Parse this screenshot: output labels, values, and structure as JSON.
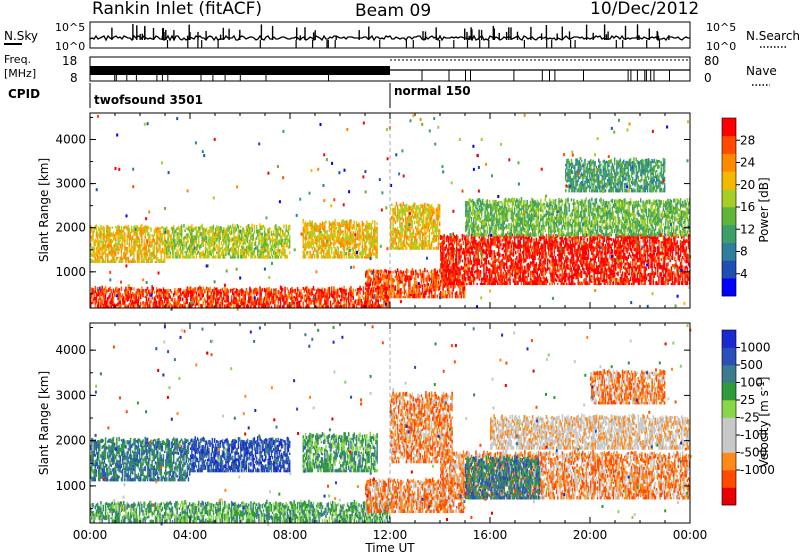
{
  "header": {
    "station": "Rankin Inlet (fitACF)",
    "beam": "Beam 09",
    "date": "10/Dec/2012"
  },
  "top_panels": {
    "nsky_label": "N.Sky",
    "nsearch_label": "N.Search",
    "nsky_tick_top": "10^5",
    "nsky_tick_bottom": "10^0",
    "nsearch_tick_top": "10^5",
    "nsearch_tick_bottom": "10^0",
    "freq_label_1": "Freq.",
    "freq_label_2": "[MHz]",
    "freq_tick_top": "18",
    "freq_tick_bottom": "8",
    "nave_label": "Nave",
    "nave_tick_top": "80",
    "nave_tick_bottom": "0",
    "cpid_label": "CPID",
    "cpid_1": "twofsound 3501",
    "cpid_2": "normal 150"
  },
  "colors": {
    "power_scale": [
      "#0000ff",
      "#1f4fb0",
      "#2f7f9c",
      "#3e9e68",
      "#5fb43a",
      "#a6cf26",
      "#f5b800",
      "#ff8a00",
      "#ff4a00",
      "#ff0000"
    ],
    "velocity_scale": [
      "#e80000",
      "#ff4a00",
      "#ff8a1a",
      "#c8c8c8",
      "#c8c8c8",
      "#8ad64a",
      "#2f9a3a",
      "#3b7b8e",
      "#2a4fb8",
      "#1a2ad0"
    ]
  },
  "chart_data": [
    {
      "type": "heatmap",
      "panel": "power",
      "ylabel": "Slant Range [km]",
      "ylim": [
        180,
        4600
      ],
      "yticks": [
        "1000",
        "2000",
        "3000",
        "4000"
      ],
      "xlim_hours": [
        0,
        24
      ],
      "colorbar_label": "Power [dB]",
      "colorbar_ticks": [
        "4",
        "8",
        "12",
        "16",
        "20",
        "24",
        "28"
      ],
      "bands": [
        {
          "t0": 0,
          "t1": 12,
          "r0": 180,
          "r1": 600,
          "level": 8.5
        },
        {
          "t0": 0,
          "t1": 3,
          "r0": 1200,
          "r1": 2000,
          "level": 6
        },
        {
          "t0": 3,
          "t1": 8,
          "r0": 1300,
          "r1": 2000,
          "level": 5
        },
        {
          "t0": 8.5,
          "t1": 11.5,
          "r0": 1300,
          "r1": 2100,
          "level": 6
        },
        {
          "t0": 11,
          "t1": 15,
          "r0": 400,
          "r1": 1000,
          "level": 8
        },
        {
          "t0": 12,
          "t1": 14,
          "r0": 1500,
          "r1": 2500,
          "level": 6
        },
        {
          "t0": 14,
          "t1": 24,
          "r0": 700,
          "r1": 1800,
          "level": 9
        },
        {
          "t0": 15,
          "t1": 24,
          "r0": 1800,
          "r1": 2600,
          "level": 4
        },
        {
          "t0": 19,
          "t1": 23,
          "r0": 2800,
          "r1": 3500,
          "level": 3
        }
      ]
    },
    {
      "type": "heatmap",
      "panel": "velocity",
      "ylabel": "Slant Range [km]",
      "ylim": [
        180,
        4600
      ],
      "yticks": [
        "1000",
        "2000",
        "3000",
        "4000"
      ],
      "xlim_hours": [
        0,
        24
      ],
      "xlabel": "Time UT",
      "xticks": [
        "00:00",
        "04:00",
        "08:00",
        "12:00",
        "16:00",
        "20:00",
        "00:00"
      ],
      "colorbar_label": "Velocity [m s",
      "colorbar_label_sup": "-1",
      "colorbar_label_end": "]",
      "colorbar_ticks": [
        "1000",
        "500",
        "100",
        "25",
        "-25",
        "-100",
        "-500",
        "-1000"
      ],
      "bands": [
        {
          "t0": 0,
          "t1": 12,
          "r0": 180,
          "r1": 600,
          "level": 6
        },
        {
          "t0": 0,
          "t1": 4,
          "r0": 1100,
          "r1": 2000,
          "level": 7
        },
        {
          "t0": 4,
          "t1": 8,
          "r0": 1300,
          "r1": 2000,
          "level": 8
        },
        {
          "t0": 8.5,
          "t1": 11.5,
          "r0": 1300,
          "r1": 2100,
          "level": 6
        },
        {
          "t0": 11,
          "t1": 15,
          "r0": 400,
          "r1": 1100,
          "level": 2
        },
        {
          "t0": 12,
          "t1": 14.5,
          "r0": 1500,
          "r1": 3000,
          "level": 2
        },
        {
          "t0": 14,
          "t1": 24,
          "r0": 700,
          "r1": 1700,
          "level": 2
        },
        {
          "t0": 15,
          "t1": 18,
          "r0": 700,
          "r1": 1600,
          "level": 7
        },
        {
          "t0": 16,
          "t1": 24,
          "r0": 1800,
          "r1": 2500,
          "level": 3
        },
        {
          "t0": 20,
          "t1": 23,
          "r0": 2800,
          "r1": 3500,
          "level": 2
        }
      ]
    }
  ]
}
